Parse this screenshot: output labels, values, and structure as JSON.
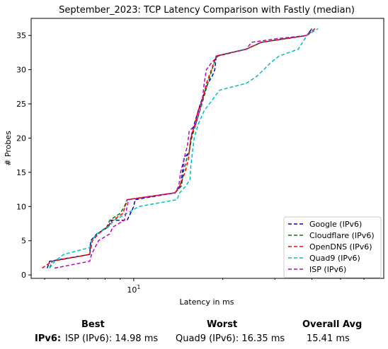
{
  "chart_data": {
    "type": "line",
    "title": "September_2023: TCP Latency Comparison with Fastly (median)",
    "xlabel": "Latency in ms",
    "ylabel": "# Probes",
    "x_scale": "log",
    "xlim": [
      4.5,
      70
    ],
    "ylim": [
      -0.5,
      37.5
    ],
    "x_ticks": [
      {
        "value": 10,
        "label": "10^1"
      }
    ],
    "y_ticks": [
      0,
      5,
      10,
      15,
      20,
      25,
      30,
      35
    ],
    "grid": false,
    "legend_position": "lower right",
    "series": [
      {
        "name": "Google (IPv6)",
        "color": "#0000cc",
        "dash": "dashed",
        "points": [
          [
            5.1,
            1
          ],
          [
            5.2,
            2
          ],
          [
            7.1,
            3
          ],
          [
            7.15,
            5
          ],
          [
            7.5,
            6
          ],
          [
            8.2,
            7
          ],
          [
            8.4,
            8
          ],
          [
            9.5,
            8
          ],
          [
            10.0,
            10
          ],
          [
            10.1,
            11
          ],
          [
            13.8,
            12
          ],
          [
            14.4,
            13
          ],
          [
            14.6,
            15
          ],
          [
            14.8,
            17
          ],
          [
            15.4,
            18
          ],
          [
            15.6,
            20
          ],
          [
            16.0,
            22
          ],
          [
            16.8,
            25
          ],
          [
            17.8,
            28
          ],
          [
            18.4,
            29
          ],
          [
            18.8,
            30
          ],
          [
            19.0,
            32
          ],
          [
            24.0,
            33
          ],
          [
            27.0,
            34
          ],
          [
            38.5,
            35
          ],
          [
            40.0,
            36
          ]
        ]
      },
      {
        "name": "Cloudflare (IPv6)",
        "color": "#008000",
        "dash": "dashed",
        "points": [
          [
            5.2,
            1
          ],
          [
            5.3,
            2
          ],
          [
            7.1,
            3
          ],
          [
            7.2,
            5
          ],
          [
            7.5,
            6
          ],
          [
            8.1,
            7
          ],
          [
            8.3,
            8
          ],
          [
            9.0,
            9
          ],
          [
            9.3,
            10
          ],
          [
            9.5,
            11
          ],
          [
            13.8,
            12
          ],
          [
            14.5,
            13
          ],
          [
            14.7,
            15
          ],
          [
            15.1,
            17
          ],
          [
            15.4,
            18
          ],
          [
            15.7,
            20
          ],
          [
            16.2,
            22
          ],
          [
            17.0,
            25
          ],
          [
            17.8,
            28
          ],
          [
            18.4,
            30
          ],
          [
            19.0,
            32
          ],
          [
            24.0,
            33
          ],
          [
            27.0,
            34
          ],
          [
            38.5,
            35
          ],
          [
            40.0,
            36
          ]
        ]
      },
      {
        "name": "OpenDNS (IPv6)",
        "color": "#ff0000",
        "dash": "dashed",
        "points": [
          [
            4.9,
            1
          ],
          [
            5.3,
            2
          ],
          [
            7.1,
            3
          ],
          [
            7.25,
            5
          ],
          [
            7.6,
            6
          ],
          [
            8.1,
            7
          ],
          [
            8.5,
            8
          ],
          [
            9.2,
            9
          ],
          [
            9.5,
            11
          ],
          [
            13.8,
            12
          ],
          [
            14.3,
            13
          ],
          [
            14.9,
            15
          ],
          [
            15.3,
            17
          ],
          [
            15.6,
            20
          ],
          [
            16.1,
            22
          ],
          [
            16.5,
            24
          ],
          [
            17.2,
            26
          ],
          [
            17.6,
            28
          ],
          [
            18.3,
            30
          ],
          [
            19.0,
            32
          ],
          [
            24.0,
            33
          ],
          [
            27.0,
            34
          ],
          [
            38.5,
            35
          ],
          [
            41.0,
            36
          ]
        ]
      },
      {
        "name": "Quad9 (IPv6)",
        "color": "#00bfbf",
        "dash": "dashed",
        "points": [
          [
            5.2,
            1
          ],
          [
            5.4,
            2
          ],
          [
            5.8,
            3
          ],
          [
            7.1,
            4
          ],
          [
            7.2,
            5
          ],
          [
            7.5,
            6
          ],
          [
            8.2,
            7
          ],
          [
            8.6,
            8
          ],
          [
            9.5,
            9
          ],
          [
            10.4,
            10
          ],
          [
            14.0,
            11
          ],
          [
            14.3,
            12
          ],
          [
            15.0,
            13
          ],
          [
            15.5,
            14
          ],
          [
            15.6,
            16
          ],
          [
            16.0,
            20
          ],
          [
            16.5,
            22
          ],
          [
            17.3,
            24
          ],
          [
            18.0,
            25
          ],
          [
            19.5,
            27
          ],
          [
            24.0,
            28
          ],
          [
            26.0,
            29
          ],
          [
            27.5,
            30
          ],
          [
            29.0,
            31
          ],
          [
            31.0,
            32
          ],
          [
            36.0,
            33
          ],
          [
            38.5,
            35
          ],
          [
            42.0,
            36
          ]
        ]
      },
      {
        "name": "ISP (IPv6)",
        "color": "#bf00bf",
        "dash": "dashed",
        "points": [
          [
            5.4,
            1
          ],
          [
            7.1,
            2
          ],
          [
            7.2,
            3
          ],
          [
            7.6,
            5
          ],
          [
            8.3,
            6
          ],
          [
            8.5,
            7
          ],
          [
            9.3,
            8
          ],
          [
            9.5,
            10
          ],
          [
            9.6,
            11
          ],
          [
            13.8,
            12
          ],
          [
            14.2,
            13
          ],
          [
            14.4,
            15
          ],
          [
            14.8,
            17
          ],
          [
            15.2,
            19
          ],
          [
            15.4,
            21
          ],
          [
            16.2,
            22
          ],
          [
            16.7,
            24
          ],
          [
            17.1,
            26
          ],
          [
            17.3,
            28
          ],
          [
            17.6,
            30
          ],
          [
            18.3,
            31
          ],
          [
            19.3,
            32
          ],
          [
            24.0,
            33
          ],
          [
            25.0,
            34
          ],
          [
            30.0,
            34.5
          ],
          [
            38.5,
            35
          ],
          [
            41.0,
            36
          ]
        ]
      }
    ]
  },
  "summary": {
    "headers": {
      "best": "Best",
      "worst": "Worst",
      "avg": "Overall Avg"
    },
    "row_label": "IPv6",
    "row_sep": ":",
    "best": "ISP (IPv6): 14.98 ms",
    "worst": "Quad9 (IPv6): 16.35 ms",
    "avg": "15.41 ms"
  }
}
